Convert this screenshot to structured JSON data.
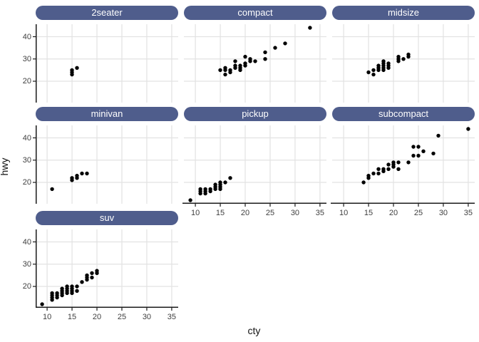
{
  "figure": {
    "x_axis_title": "cty",
    "y_axis_title": "hwy",
    "colors": {
      "strip_fill": "#4f5d8c",
      "strip_text": "#ffffff",
      "grid_line": "#e2e2e2",
      "axis_line": "#1a1a1a",
      "point": "#000000",
      "tick_text": "#404040"
    }
  },
  "chart_data": {
    "type": "scatter",
    "title": "",
    "xlabel": "cty",
    "ylabel": "hwy",
    "facet_variable": "class",
    "x_ticks": [
      10,
      15,
      20,
      25,
      30,
      35
    ],
    "y_ticks": [
      20,
      30,
      40
    ],
    "x_range": [
      7.7,
      36.3
    ],
    "y_range": [
      10.4,
      45.6
    ],
    "grid": "major-only",
    "legend": "none",
    "point_color": "#000000",
    "facets": [
      {
        "label": "2seater",
        "points": [
          [
            15,
            23
          ],
          [
            15,
            24
          ],
          [
            15,
            25
          ],
          [
            16,
            26
          ]
        ]
      },
      {
        "label": "compact",
        "points": [
          [
            15,
            25
          ],
          [
            16,
            23
          ],
          [
            16,
            25
          ],
          [
            16,
            26
          ],
          [
            17,
            24
          ],
          [
            17,
            25
          ],
          [
            18,
            26
          ],
          [
            18,
            27
          ],
          [
            18,
            29
          ],
          [
            19,
            25
          ],
          [
            19,
            26
          ],
          [
            19,
            27
          ],
          [
            20,
            27
          ],
          [
            20,
            28
          ],
          [
            20,
            31
          ],
          [
            21,
            29
          ],
          [
            21,
            30
          ],
          [
            22,
            29
          ],
          [
            24,
            30
          ],
          [
            24,
            33
          ],
          [
            26,
            35
          ],
          [
            28,
            37
          ],
          [
            33,
            44
          ]
        ]
      },
      {
        "label": "midsize",
        "points": [
          [
            15,
            24
          ],
          [
            16,
            23
          ],
          [
            16,
            25
          ],
          [
            17,
            25
          ],
          [
            17,
            26
          ],
          [
            17,
            27
          ],
          [
            18,
            25
          ],
          [
            18,
            26
          ],
          [
            18,
            27
          ],
          [
            18,
            28
          ],
          [
            18,
            29
          ],
          [
            19,
            26
          ],
          [
            19,
            27
          ],
          [
            19,
            28
          ],
          [
            21,
            29
          ],
          [
            21,
            30
          ],
          [
            21,
            31
          ],
          [
            22,
            30
          ],
          [
            23,
            31
          ],
          [
            23,
            32
          ]
        ]
      },
      {
        "label": "minivan",
        "points": [
          [
            11,
            17
          ],
          [
            15,
            21
          ],
          [
            15,
            22
          ],
          [
            16,
            22
          ],
          [
            16,
            23
          ],
          [
            17,
            24
          ],
          [
            18,
            24
          ]
        ]
      },
      {
        "label": "pickup",
        "points": [
          [
            9,
            12
          ],
          [
            11,
            15
          ],
          [
            11,
            16
          ],
          [
            11,
            17
          ],
          [
            12,
            15
          ],
          [
            12,
            16
          ],
          [
            12,
            17
          ],
          [
            13,
            16
          ],
          [
            13,
            17
          ],
          [
            14,
            17
          ],
          [
            14,
            18
          ],
          [
            14,
            19
          ],
          [
            15,
            17
          ],
          [
            15,
            18
          ],
          [
            15,
            19
          ],
          [
            15,
            20
          ],
          [
            16,
            20
          ],
          [
            17,
            22
          ]
        ]
      },
      {
        "label": "subcompact",
        "points": [
          [
            14,
            20
          ],
          [
            15,
            22
          ],
          [
            15,
            23
          ],
          [
            16,
            24
          ],
          [
            17,
            24
          ],
          [
            17,
            26
          ],
          [
            18,
            25
          ],
          [
            18,
            26
          ],
          [
            19,
            26
          ],
          [
            19,
            28
          ],
          [
            20,
            27
          ],
          [
            20,
            28
          ],
          [
            20,
            29
          ],
          [
            21,
            26
          ],
          [
            21,
            29
          ],
          [
            23,
            29
          ],
          [
            24,
            32
          ],
          [
            24,
            36
          ],
          [
            25,
            32
          ],
          [
            25,
            36
          ],
          [
            26,
            34
          ],
          [
            28,
            33
          ],
          [
            29,
            41
          ],
          [
            35,
            44
          ]
        ]
      },
      {
        "label": "suv",
        "points": [
          [
            9,
            12
          ],
          [
            11,
            14
          ],
          [
            11,
            15
          ],
          [
            11,
            16
          ],
          [
            11,
            17
          ],
          [
            12,
            15
          ],
          [
            12,
            16
          ],
          [
            12,
            17
          ],
          [
            13,
            16
          ],
          [
            13,
            17
          ],
          [
            13,
            18
          ],
          [
            13,
            19
          ],
          [
            14,
            17
          ],
          [
            14,
            18
          ],
          [
            14,
            19
          ],
          [
            14,
            20
          ],
          [
            15,
            17
          ],
          [
            15,
            18
          ],
          [
            15,
            19
          ],
          [
            15,
            20
          ],
          [
            16,
            18
          ],
          [
            16,
            20
          ],
          [
            17,
            22
          ],
          [
            18,
            23
          ],
          [
            18,
            24
          ],
          [
            18,
            25
          ],
          [
            19,
            24
          ],
          [
            19,
            26
          ],
          [
            20,
            26
          ],
          [
            20,
            27
          ]
        ]
      }
    ]
  }
}
